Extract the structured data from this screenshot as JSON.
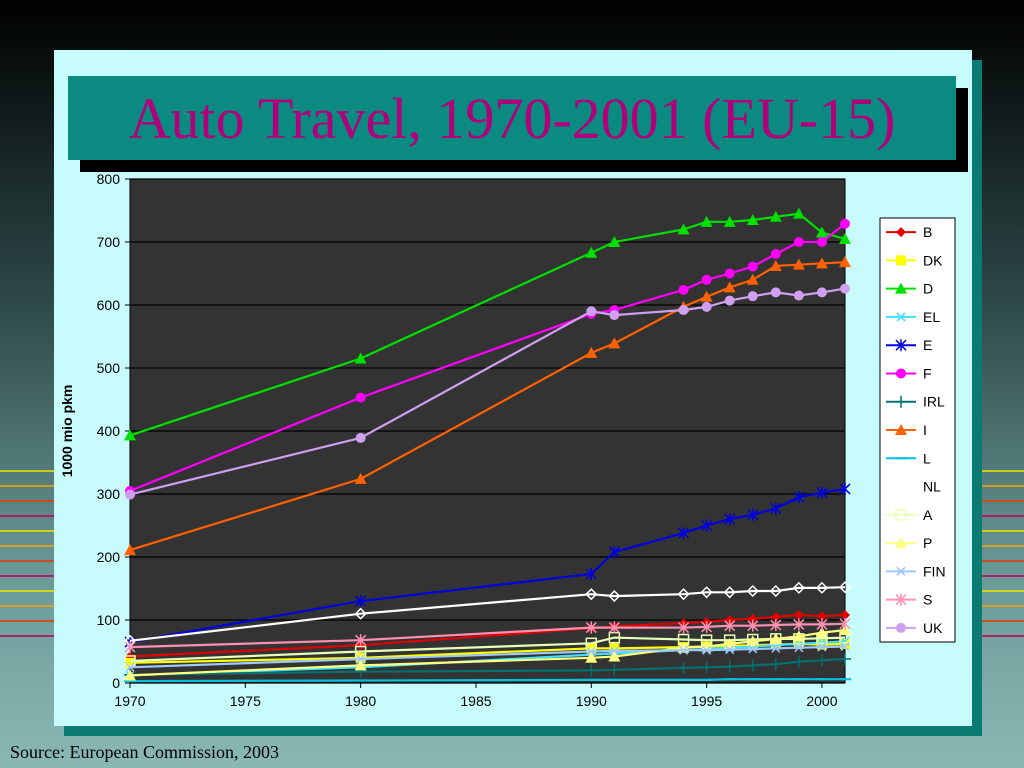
{
  "source": "Source:  European Commission, 2003",
  "chart_data": {
    "type": "line",
    "title": "Auto Travel, 1970-2001 (EU-15)",
    "xlabel": "",
    "ylabel": "1000 mio pkm",
    "xlim": [
      1970,
      2001
    ],
    "ylim": [
      0,
      800
    ],
    "x_ticks": [
      "1970",
      "1975",
      "1980",
      "1985",
      "1990",
      "1995",
      "2000"
    ],
    "y_ticks": [
      "0",
      "100",
      "200",
      "300",
      "400",
      "500",
      "600",
      "700",
      "800"
    ],
    "grid": "horizontal",
    "legend_position": "right",
    "background": "#333333",
    "series": [
      {
        "name": "B",
        "color": "#e00000",
        "marker": "diamond",
        "points": [
          [
            1970,
            42
          ],
          [
            1980,
            60
          ],
          [
            1990,
            87
          ],
          [
            1991,
            90
          ],
          [
            1994,
            95
          ],
          [
            1995,
            97
          ],
          [
            1996,
            100
          ],
          [
            1997,
            102
          ],
          [
            1998,
            105
          ],
          [
            1999,
            108
          ],
          [
            2000,
            106
          ],
          [
            2001,
            108
          ]
        ]
      },
      {
        "name": "DK",
        "color": "#ffff00",
        "marker": "square",
        "points": [
          [
            1970,
            32
          ],
          [
            1980,
            40
          ],
          [
            1990,
            55
          ],
          [
            1991,
            55
          ],
          [
            1994,
            57
          ],
          [
            1995,
            58
          ],
          [
            1996,
            59
          ],
          [
            1997,
            60
          ],
          [
            1998,
            61
          ],
          [
            1999,
            62
          ],
          [
            2000,
            61
          ],
          [
            2001,
            62
          ]
        ]
      },
      {
        "name": "D",
        "color": "#00e000",
        "marker": "triangle",
        "points": [
          [
            1970,
            393
          ],
          [
            1980,
            515
          ],
          [
            1990,
            683
          ],
          [
            1991,
            700
          ],
          [
            1994,
            720
          ],
          [
            1995,
            732
          ],
          [
            1996,
            732
          ],
          [
            1997,
            735
          ],
          [
            1998,
            740
          ],
          [
            1999,
            745
          ],
          [
            2000,
            715
          ],
          [
            2001,
            705
          ]
        ]
      },
      {
        "name": "EL",
        "color": "#40e0ff",
        "marker": "x",
        "points": [
          [
            1970,
            12
          ],
          [
            1980,
            25
          ],
          [
            1990,
            45
          ],
          [
            1991,
            47
          ],
          [
            1994,
            52
          ],
          [
            1995,
            54
          ],
          [
            1996,
            56
          ],
          [
            1997,
            58
          ],
          [
            1998,
            60
          ],
          [
            1999,
            62
          ],
          [
            2000,
            64
          ],
          [
            2001,
            66
          ]
        ]
      },
      {
        "name": "E",
        "color": "#0000e0",
        "marker": "star",
        "points": [
          [
            1970,
            65
          ],
          [
            1980,
            130
          ],
          [
            1990,
            173
          ],
          [
            1991,
            208
          ],
          [
            1994,
            238
          ],
          [
            1995,
            250
          ],
          [
            1996,
            260
          ],
          [
            1997,
            267
          ],
          [
            1998,
            277
          ],
          [
            1999,
            295
          ],
          [
            2000,
            302
          ],
          [
            2001,
            308
          ]
        ]
      },
      {
        "name": "F",
        "color": "#ff00ff",
        "marker": "circle",
        "points": [
          [
            1970,
            305
          ],
          [
            1980,
            453
          ],
          [
            1990,
            586
          ],
          [
            1991,
            592
          ],
          [
            1994,
            624
          ],
          [
            1995,
            640
          ],
          [
            1996,
            650
          ],
          [
            1997,
            661
          ],
          [
            1998,
            681
          ],
          [
            1999,
            700
          ],
          [
            2000,
            700
          ],
          [
            2001,
            729
          ]
        ]
      },
      {
        "name": "IRL",
        "color": "#007070",
        "marker": "plus",
        "points": [
          [
            1970,
            13
          ],
          [
            1980,
            18
          ],
          [
            1990,
            20
          ],
          [
            1991,
            21
          ],
          [
            1994,
            24
          ],
          [
            1995,
            25
          ],
          [
            1996,
            26
          ],
          [
            1997,
            28
          ],
          [
            1998,
            30
          ],
          [
            1999,
            34
          ],
          [
            2000,
            36
          ],
          [
            2001,
            38
          ]
        ]
      },
      {
        "name": "I",
        "color": "#ff6000",
        "marker": "triangle",
        "points": [
          [
            1970,
            211
          ],
          [
            1980,
            324
          ],
          [
            1990,
            524
          ],
          [
            1991,
            539
          ],
          [
            1994,
            597
          ],
          [
            1995,
            613
          ],
          [
            1996,
            628
          ],
          [
            1997,
            640
          ],
          [
            1998,
            662
          ],
          [
            1999,
            664
          ],
          [
            2000,
            666
          ],
          [
            2001,
            668
          ]
        ]
      },
      {
        "name": "L",
        "color": "#00c0e0",
        "marker": "dash",
        "points": [
          [
            1970,
            3
          ],
          [
            1980,
            4
          ],
          [
            1990,
            5
          ],
          [
            1991,
            5
          ],
          [
            1994,
            5
          ],
          [
            1995,
            5
          ],
          [
            1996,
            6
          ],
          [
            1997,
            6
          ],
          [
            1998,
            6
          ],
          [
            1999,
            6
          ],
          [
            2000,
            6
          ],
          [
            2001,
            6
          ]
        ]
      },
      {
        "name": "NL",
        "color": "#ffffff",
        "marker": "open-diamond",
        "points": [
          [
            1970,
            67
          ],
          [
            1980,
            110
          ],
          [
            1990,
            141
          ],
          [
            1991,
            138
          ],
          [
            1994,
            141
          ],
          [
            1995,
            144
          ],
          [
            1996,
            144
          ],
          [
            1997,
            146
          ],
          [
            1998,
            146
          ],
          [
            1999,
            151
          ],
          [
            2000,
            151
          ],
          [
            2001,
            152
          ]
        ]
      },
      {
        "name": "A",
        "color": "#e8ffb8",
        "marker": "open-square",
        "points": [
          [
            1970,
            35
          ],
          [
            1980,
            50
          ],
          [
            1990,
            63
          ],
          [
            1991,
            72
          ],
          [
            1994,
            69
          ],
          [
            1995,
            68
          ],
          [
            1996,
            68
          ],
          [
            1997,
            69
          ],
          [
            1998,
            70
          ],
          [
            1999,
            70
          ],
          [
            2000,
            71
          ],
          [
            2001,
            72
          ]
        ]
      },
      {
        "name": "P",
        "color": "#ffff80",
        "marker": "triangle",
        "points": [
          [
            1970,
            12
          ],
          [
            1980,
            28
          ],
          [
            1990,
            40
          ],
          [
            1991,
            42
          ],
          [
            1994,
            56
          ],
          [
            1995,
            58
          ],
          [
            1996,
            62
          ],
          [
            1997,
            66
          ],
          [
            1998,
            70
          ],
          [
            1999,
            74
          ],
          [
            2000,
            80
          ],
          [
            2001,
            84
          ]
        ]
      },
      {
        "name": "FIN",
        "color": "#a0c8ff",
        "marker": "x",
        "points": [
          [
            1970,
            25
          ],
          [
            1980,
            38
          ],
          [
            1990,
            50
          ],
          [
            1991,
            51
          ],
          [
            1994,
            52
          ],
          [
            1995,
            52
          ],
          [
            1996,
            53
          ],
          [
            1997,
            54
          ],
          [
            1998,
            55
          ],
          [
            1999,
            56
          ],
          [
            2000,
            57
          ],
          [
            2001,
            58
          ]
        ]
      },
      {
        "name": "S",
        "color": "#ff90b0",
        "marker": "star",
        "points": [
          [
            1970,
            57
          ],
          [
            1980,
            68
          ],
          [
            1990,
            88
          ],
          [
            1991,
            88
          ],
          [
            1994,
            88
          ],
          [
            1995,
            89
          ],
          [
            1996,
            91
          ],
          [
            1997,
            91
          ],
          [
            1998,
            92
          ],
          [
            1999,
            93
          ],
          [
            2000,
            93
          ],
          [
            2001,
            94
          ]
        ]
      },
      {
        "name": "UK",
        "color": "#d0a0f0",
        "marker": "circle",
        "points": [
          [
            1970,
            299
          ],
          [
            1980,
            389
          ],
          [
            1990,
            590
          ],
          [
            1991,
            584
          ],
          [
            1994,
            592
          ],
          [
            1995,
            597
          ],
          [
            1996,
            607
          ],
          [
            1997,
            614
          ],
          [
            1998,
            620
          ],
          [
            1999,
            615
          ],
          [
            2000,
            620
          ],
          [
            2001,
            626
          ]
        ]
      }
    ]
  }
}
